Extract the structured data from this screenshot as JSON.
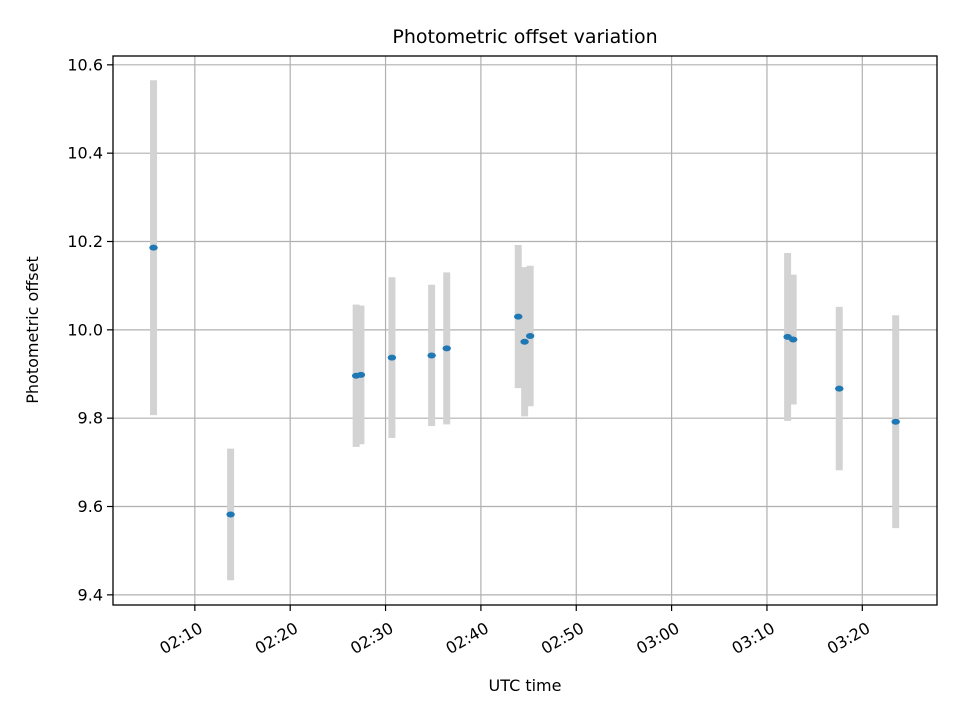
{
  "chart_data": {
    "type": "scatter",
    "title": "Photometric offset variation",
    "xlabel": "UTC time",
    "ylabel": "Photometric offset",
    "x_ticks": [
      "02:10",
      "02:20",
      "02:30",
      "02:40",
      "02:50",
      "03:00",
      "03:10",
      "03:20"
    ],
    "y_ticks": [
      "9.4",
      "9.6",
      "9.8",
      "10.0",
      "10.2",
      "10.4",
      "10.6"
    ],
    "xlim": [
      "02:01:25",
      "03:27:50"
    ],
    "ylim": [
      9.377,
      10.62
    ],
    "grid": true,
    "series": [
      {
        "points": [
          {
            "x": "02:05:40",
            "y": 10.186,
            "yerr": 0.379
          },
          {
            "x": "02:13:45",
            "y": 9.582,
            "yerr": 0.149
          },
          {
            "x": "02:26:55",
            "y": 9.896,
            "yerr": 0.161
          },
          {
            "x": "02:27:25",
            "y": 9.898,
            "yerr": 0.157
          },
          {
            "x": "02:30:40",
            "y": 9.937,
            "yerr": 0.182
          },
          {
            "x": "02:34:50",
            "y": 9.942,
            "yerr": 0.16
          },
          {
            "x": "02:36:25",
            "y": 9.958,
            "yerr": 0.172
          },
          {
            "x": "02:43:55",
            "y": 10.03,
            "yerr": 0.162
          },
          {
            "x": "02:44:35",
            "y": 9.973,
            "yerr": 0.169
          },
          {
            "x": "02:45:10",
            "y": 9.986,
            "yerr": 0.159
          },
          {
            "x": "03:12:10",
            "y": 9.984,
            "yerr": 0.19
          },
          {
            "x": "03:12:45",
            "y": 9.978,
            "yerr": 0.147
          },
          {
            "x": "03:17:35",
            "y": 9.867,
            "yerr": 0.185
          },
          {
            "x": "03:23:30",
            "y": 9.792,
            "yerr": 0.241
          }
        ]
      }
    ],
    "colors": {
      "marker": "#1f77b4",
      "errorbar": "#d3d3d3",
      "grid": "#b0b0b0",
      "axis": "#000000"
    }
  }
}
